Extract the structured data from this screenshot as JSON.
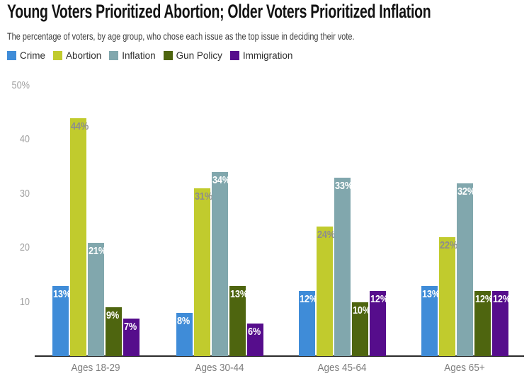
{
  "header": {
    "title": "Young Voters Prioritized Abortion; Older Voters Prioritized Inflation",
    "subtitle": "The percentage of voters, by age group, who chose each issue as the top issue in deciding their vote."
  },
  "colors": {
    "crime": "#3f8cd8",
    "abortion": "#c1cb2d",
    "inflation": "#81a7ad",
    "gun_policy": "#4e650f",
    "immigration": "#560d8c",
    "value_label_default": "#ffffff",
    "value_label_on_abortion": "#8d8d8d",
    "axis_line": "#2b2b2b",
    "tick_text": "#a2a2a2",
    "category_text": "#7d7d7d",
    "title_text": "#131313",
    "subtitle_text": "#3d3d3d",
    "legend_text": "#2f2f2f"
  },
  "chart_data": {
    "type": "bar",
    "title": "Young Voters Prioritized Abortion; Older Voters Prioritized Inflation",
    "subtitle": "The percentage of voters, by age group, who chose each issue as the top issue in deciding their vote.",
    "xlabel": "",
    "ylabel": "",
    "categories": [
      "Ages 18-29",
      "Ages 30-44",
      "Ages 45-64",
      "Ages 65+"
    ],
    "series": [
      {
        "name": "Crime",
        "color": "#3f8cd8",
        "label_color": "#ffffff",
        "values": [
          13,
          8,
          12,
          13
        ]
      },
      {
        "name": "Abortion",
        "color": "#c1cb2d",
        "label_color": "#8d8d8d",
        "values": [
          44,
          31,
          24,
          22
        ]
      },
      {
        "name": "Inflation",
        "color": "#81a7ad",
        "label_color": "#ffffff",
        "values": [
          21,
          34,
          33,
          32
        ]
      },
      {
        "name": "Gun Policy",
        "color": "#4e650f",
        "label_color": "#ffffff",
        "values": [
          9,
          13,
          10,
          12
        ]
      },
      {
        "name": "Immigration",
        "color": "#560d8c",
        "label_color": "#ffffff",
        "values": [
          7,
          6,
          12,
          12
        ]
      }
    ],
    "value_suffix": "%",
    "value_labels_position": "inside-top",
    "yticks": [
      {
        "value": 50,
        "label": "50%"
      },
      {
        "value": 40,
        "label": "40"
      },
      {
        "value": 30,
        "label": "30"
      },
      {
        "value": 20,
        "label": "20"
      },
      {
        "value": 10,
        "label": "10"
      }
    ],
    "ylim": [
      0,
      50
    ],
    "grid": false,
    "legend_position": "top-left"
  }
}
